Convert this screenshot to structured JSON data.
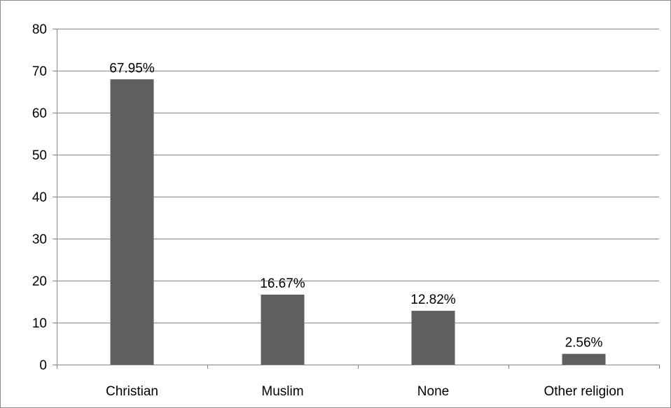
{
  "chart_data": {
    "type": "bar",
    "categories": [
      "Christian",
      "Muslim",
      "None",
      "Other religion"
    ],
    "values": [
      67.95,
      16.67,
      12.82,
      2.56
    ],
    "data_labels": [
      "67.95%",
      "16.67%",
      "12.82%",
      "2.56%"
    ],
    "y_ticks": [
      "0",
      "10",
      "20",
      "30",
      "40",
      "50",
      "60",
      "70",
      "80"
    ],
    "ylim": [
      0,
      80
    ],
    "y_tick_step": 10,
    "grid": true,
    "legend": "none",
    "title": "",
    "xlabel": "",
    "ylabel": "",
    "colors": {
      "bar": "#5f5f5f",
      "grid": "#878787",
      "frame": "#8c8c8c",
      "text": "#000000"
    }
  }
}
